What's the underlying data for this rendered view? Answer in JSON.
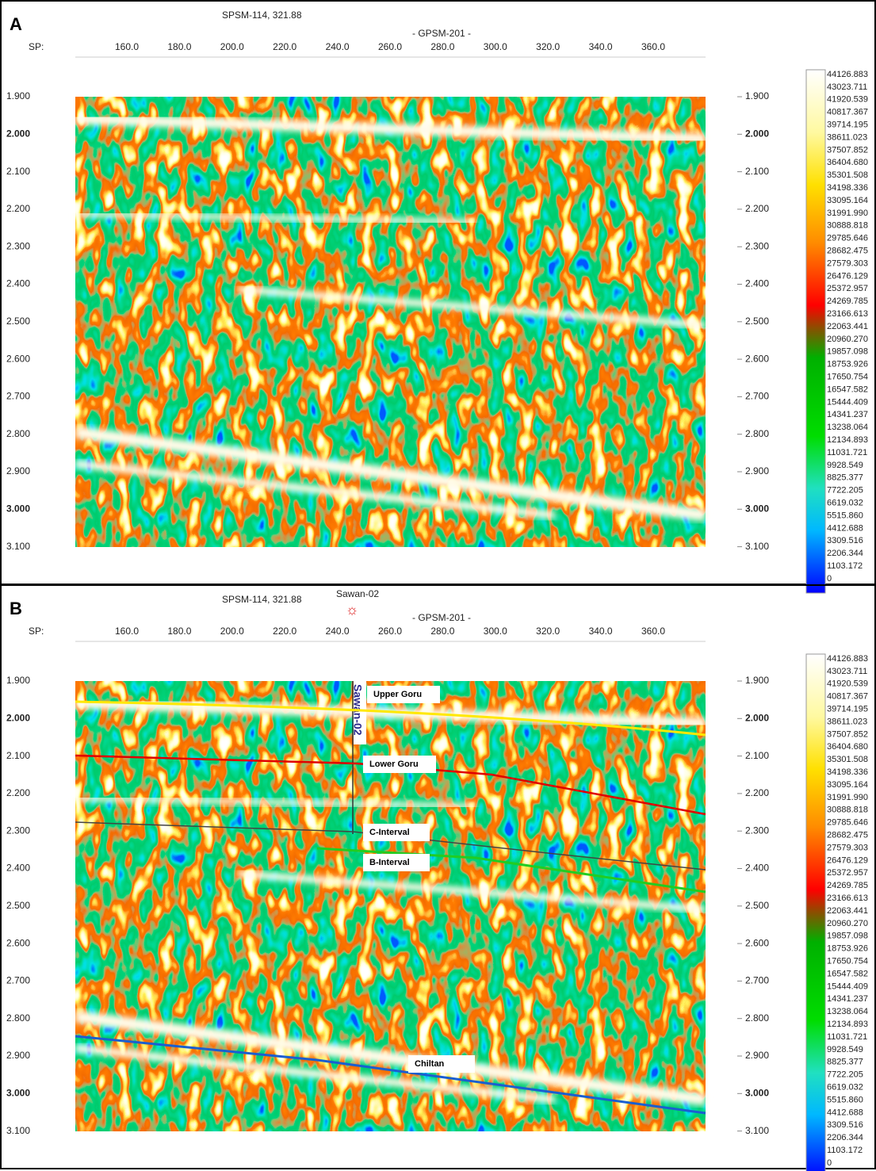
{
  "panels": [
    {
      "label": "A",
      "well_header": "SPSM-114, 321.88",
      "line_name": "- GPSM-201 -",
      "sp_label": "SP:",
      "x_ticks": [
        "160.0",
        "180.0",
        "200.0",
        "220.0",
        "240.0",
        "260.0",
        "280.0",
        "300.0",
        "320.0",
        "340.0",
        "360.0"
      ],
      "y_ticks": [
        "1.900",
        "2.000",
        "2.100",
        "2.200",
        "2.300",
        "2.400",
        "2.500",
        "2.600",
        "2.700",
        "2.800",
        "2.900",
        "3.000",
        "3.100"
      ],
      "colorbar": [
        "44126.883",
        "43023.711",
        "41920.539",
        "40817.367",
        "39714.195",
        "38611.023",
        "37507.852",
        "36404.680",
        "35301.508",
        "34198.336",
        "33095.164",
        "31991.990",
        "30888.818",
        "29785.646",
        "28682.475",
        "27579.303",
        "26476.129",
        "25372.957",
        "24269.785",
        "23166.613",
        "22063.441",
        "20960.270",
        "19857.098",
        "18753.926",
        "17650.754",
        "16547.582",
        "15444.409",
        "14341.237",
        "13238.064",
        "12134.893",
        "11031.721",
        "9928.549",
        "8825.377",
        "7722.205",
        "6619.032",
        "5515.860",
        "4412.688",
        "3309.516",
        "2206.344",
        "1103.172",
        "0"
      ]
    },
    {
      "label": "B",
      "well_header": "SPSM-114, 321.88",
      "well_name": "Sawan-02",
      "line_name": "- GPSM-201 -",
      "sp_label": "SP:",
      "well_track_label": "Sawan-02",
      "x_ticks": [
        "160.0",
        "180.0",
        "200.0",
        "220.0",
        "240.0",
        "260.0",
        "280.0",
        "300.0",
        "320.0",
        "340.0",
        "360.0"
      ],
      "y_ticks": [
        "1.900",
        "2.000",
        "2.100",
        "2.200",
        "2.300",
        "2.400",
        "2.500",
        "2.600",
        "2.700",
        "2.800",
        "2.900",
        "3.000",
        "3.100"
      ],
      "colorbar": [
        "44126.883",
        "43023.711",
        "41920.539",
        "40817.367",
        "39714.195",
        "38611.023",
        "37507.852",
        "36404.680",
        "35301.508",
        "34198.336",
        "33095.164",
        "31991.990",
        "30888.818",
        "29785.646",
        "28682.475",
        "27579.303",
        "26476.129",
        "25372.957",
        "24269.785",
        "23166.613",
        "22063.441",
        "20960.270",
        "19857.098",
        "18753.926",
        "17650.754",
        "16547.582",
        "15444.409",
        "14341.237",
        "13238.064",
        "12134.893",
        "11031.721",
        "9928.549",
        "8825.377",
        "7722.205",
        "6619.032",
        "5515.860",
        "4412.688",
        "3309.516",
        "2206.344",
        "1103.172",
        "0"
      ],
      "horizons": [
        "Upper Goru",
        "Lower Goru",
        "C-Interval",
        "B-Interval",
        "Chiltan"
      ]
    }
  ]
}
